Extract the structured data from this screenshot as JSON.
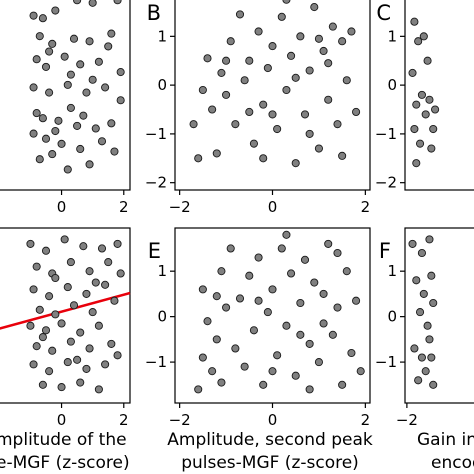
{
  "colors": {
    "point_fill": "#808080",
    "point_stroke": "#1a1a1a",
    "fit_line": "#e8000b",
    "axis": "#000000"
  },
  "axis_titles": {
    "col1": [
      "mplitude of the",
      "e-MGF (z-score)"
    ],
    "col2": [
      "Amplitude, second peak",
      "pulses-MGF (z-score)"
    ],
    "col3": [
      "Gain in",
      "encod"
    ]
  },
  "chart_data": [
    {
      "type": "scatter",
      "panel": "A",
      "letter": "",
      "grid": false,
      "xlim": [
        -2.3,
        2.2
      ],
      "ylim": [
        -2.1,
        1.8
      ],
      "xticks": [
        0,
        2
      ],
      "xtick_labels": [
        "0",
        "2"
      ],
      "yticks": [],
      "ytick_labels": [],
      "xlabel": "",
      "ylabel": "",
      "points": [
        [
          -0.9,
          1.3
        ],
        [
          -0.6,
          1.25
        ],
        [
          -0.2,
          1.4
        ],
        [
          0.5,
          1.6
        ],
        [
          1.0,
          1.55
        ],
        [
          1.8,
          1.6
        ],
        [
          -0.7,
          0.9
        ],
        [
          -0.3,
          0.75
        ],
        [
          0.4,
          0.85
        ],
        [
          0.9,
          0.8
        ],
        [
          1.5,
          0.7
        ],
        [
          -0.8,
          0.45
        ],
        [
          -0.5,
          0.3
        ],
        [
          0.1,
          0.5
        ],
        [
          0.6,
          0.35
        ],
        [
          1.2,
          0.4
        ],
        [
          1.9,
          0.2
        ],
        [
          -0.9,
          -0.1
        ],
        [
          -0.4,
          -0.2
        ],
        [
          0.2,
          -0.05
        ],
        [
          0.8,
          -0.2
        ],
        [
          1.4,
          -0.1
        ],
        [
          1.9,
          -0.35
        ],
        [
          -0.8,
          -0.6
        ],
        [
          -0.6,
          -0.7
        ],
        [
          -0.1,
          -0.75
        ],
        [
          0.3,
          -0.5
        ],
        [
          0.7,
          -0.65
        ],
        [
          1.1,
          -0.9
        ],
        [
          1.6,
          -0.8
        ],
        [
          -0.9,
          -1.0
        ],
        [
          -0.5,
          -1.1
        ],
        [
          0.0,
          -1.2
        ],
        [
          0.6,
          -1.3
        ],
        [
          1.3,
          -1.15
        ],
        [
          -0.7,
          -1.5
        ],
        [
          -0.3,
          -1.4
        ],
        [
          0.2,
          -1.7
        ],
        [
          0.9,
          -1.6
        ],
        [
          1.7,
          -1.35
        ],
        [
          -0.4,
          0.6
        ],
        [
          0.3,
          0.15
        ],
        [
          1.0,
          0.05
        ],
        [
          1.6,
          0.95
        ],
        [
          -0.2,
          -0.95
        ],
        [
          0.5,
          -0.85
        ]
      ]
    },
    {
      "type": "scatter",
      "panel": "B",
      "letter": "B",
      "grid": false,
      "xlim": [
        -2.1,
        2.1
      ],
      "ylim": [
        -2.15,
        1.95
      ],
      "xticks": [
        -2,
        0,
        2
      ],
      "xtick_labels": [
        "−2",
        "0",
        "2"
      ],
      "yticks": [
        -2,
        -1,
        0,
        1
      ],
      "ytick_labels": [
        "−2",
        "−1",
        "0",
        "1"
      ],
      "xlabel": "",
      "ylabel": "",
      "points": [
        [
          -1.6,
          -1.5
        ],
        [
          -1.2,
          -1.4
        ],
        [
          -1.7,
          -0.8
        ],
        [
          -1.3,
          -0.5
        ],
        [
          -1.5,
          -0.1
        ],
        [
          -1.1,
          0.25
        ],
        [
          -1.4,
          0.55
        ],
        [
          -0.9,
          0.9
        ],
        [
          -1.0,
          -0.2
        ],
        [
          -0.8,
          -0.8
        ],
        [
          -0.6,
          0.1
        ],
        [
          -0.5,
          0.5
        ],
        [
          -0.4,
          -1.2
        ],
        [
          -0.3,
          1.1
        ],
        [
          -0.2,
          -0.4
        ],
        [
          -0.1,
          0.35
        ],
        [
          0.0,
          0.8
        ],
        [
          0.1,
          -0.9
        ],
        [
          0.2,
          1.4
        ],
        [
          0.3,
          -0.1
        ],
        [
          0.4,
          0.6
        ],
        [
          0.5,
          -1.6
        ],
        [
          0.6,
          1.0
        ],
        [
          0.7,
          -0.6
        ],
        [
          0.8,
          0.3
        ],
        [
          0.9,
          1.6
        ],
        [
          1.0,
          -1.3
        ],
        [
          1.1,
          0.7
        ],
        [
          1.2,
          -0.3
        ],
        [
          1.3,
          1.2
        ],
        [
          1.4,
          -0.8
        ],
        [
          1.5,
          0.9
        ],
        [
          1.6,
          0.1
        ],
        [
          1.7,
          1.1
        ],
        [
          1.8,
          -0.55
        ],
        [
          -0.7,
          1.45
        ],
        [
          -0.2,
          -1.5
        ],
        [
          0.5,
          0.15
        ],
        [
          1.2,
          0.45
        ],
        [
          -1.0,
          0.5
        ],
        [
          0.0,
          -0.6
        ],
        [
          0.8,
          -1.0
        ],
        [
          1.5,
          -1.45
        ],
        [
          -0.5,
          -0.55
        ],
        [
          0.3,
          1.75
        ],
        [
          1.0,
          0.95
        ]
      ]
    },
    {
      "type": "scatter",
      "panel": "C",
      "letter": "C",
      "grid": false,
      "xlim": [
        -2.1,
        2.1
      ],
      "ylim": [
        -2.15,
        1.95
      ],
      "xticks": [],
      "xtick_labels": [],
      "yticks": [
        -2,
        -1,
        0,
        1
      ],
      "ytick_labels": [
        "−2",
        "−1",
        "0",
        "1"
      ],
      "xlabel": "",
      "ylabel": "",
      "points": [
        [
          -1.6,
          1.3
        ],
        [
          -1.4,
          0.9
        ],
        [
          -1.7,
          0.25
        ],
        [
          -1.5,
          -0.4
        ],
        [
          -1.2,
          -0.2
        ],
        [
          -1.0,
          -0.6
        ],
        [
          -0.8,
          -0.3
        ],
        [
          -0.6,
          -0.9
        ],
        [
          -1.3,
          -1.2
        ],
        [
          -1.5,
          -1.6
        ],
        [
          -0.9,
          0.5
        ],
        [
          -1.1,
          1.0
        ],
        [
          -0.7,
          -1.3
        ],
        [
          -1.6,
          -0.9
        ],
        [
          -0.5,
          -0.5
        ]
      ]
    },
    {
      "type": "scatter",
      "panel": "D",
      "letter": "",
      "grid": false,
      "xlim": [
        -2.3,
        2.2
      ],
      "ylim": [
        -1.9,
        1.95
      ],
      "xticks": [
        0,
        2
      ],
      "xtick_labels": [
        "0",
        "2"
      ],
      "yticks": [],
      "ytick_labels": [],
      "xlabel": "",
      "ylabel": "",
      "fit_line": [
        [
          -2.3,
          -0.32
        ],
        [
          2.2,
          0.52
        ]
      ],
      "points": [
        [
          -1.0,
          1.6
        ],
        [
          -0.5,
          1.45
        ],
        [
          0.1,
          1.7
        ],
        [
          0.7,
          1.55
        ],
        [
          1.3,
          1.5
        ],
        [
          1.8,
          1.6
        ],
        [
          -0.8,
          1.1
        ],
        [
          -0.3,
          0.95
        ],
        [
          0.3,
          1.2
        ],
        [
          0.9,
          1.0
        ],
        [
          1.5,
          1.2
        ],
        [
          1.9,
          0.95
        ],
        [
          -0.9,
          0.6
        ],
        [
          -0.4,
          0.45
        ],
        [
          0.2,
          0.65
        ],
        [
          0.8,
          0.5
        ],
        [
          1.4,
          0.7
        ],
        [
          -0.7,
          0.15
        ],
        [
          -0.2,
          0.05
        ],
        [
          0.4,
          0.25
        ],
        [
          1.0,
          0.1
        ],
        [
          1.7,
          0.35
        ],
        [
          -1.0,
          -0.2
        ],
        [
          -0.5,
          -0.3
        ],
        [
          0.0,
          -0.15
        ],
        [
          0.6,
          -0.35
        ],
        [
          1.2,
          -0.2
        ],
        [
          -0.8,
          -0.65
        ],
        [
          -0.3,
          -0.75
        ],
        [
          0.3,
          -0.55
        ],
        [
          0.9,
          -0.7
        ],
        [
          1.6,
          -0.6
        ],
        [
          -0.9,
          -1.05
        ],
        [
          -0.4,
          -1.2
        ],
        [
          0.2,
          -1.0
        ],
        [
          0.8,
          -1.15
        ],
        [
          1.4,
          -1.05
        ],
        [
          -0.6,
          -1.5
        ],
        [
          0.0,
          -1.55
        ],
        [
          0.6,
          -1.45
        ],
        [
          1.2,
          -1.6
        ],
        [
          -0.2,
          0.85
        ],
        [
          0.5,
          -0.95
        ],
        [
          1.1,
          0.75
        ],
        [
          -0.6,
          -0.45
        ],
        [
          1.8,
          -0.85
        ]
      ]
    },
    {
      "type": "scatter",
      "panel": "E",
      "letter": "E",
      "grid": false,
      "xlim": [
        -2.1,
        2.1
      ],
      "ylim": [
        -1.9,
        1.95
      ],
      "xticks": [
        -2,
        0,
        2
      ],
      "xtick_labels": [
        "−2",
        "0",
        "2"
      ],
      "yticks": [
        -1,
        0,
        1
      ],
      "ytick_labels": [
        "−1",
        "0",
        "1"
      ],
      "xlabel": "",
      "ylabel": "",
      "points": [
        [
          -1.6,
          -1.6
        ],
        [
          -1.3,
          -1.2
        ],
        [
          -1.1,
          -1.45
        ],
        [
          -1.5,
          -0.9
        ],
        [
          -1.2,
          -0.5
        ],
        [
          -1.4,
          -0.1
        ],
        [
          -1.0,
          0.2
        ],
        [
          -1.5,
          0.6
        ],
        [
          -1.1,
          1.0
        ],
        [
          -0.8,
          -0.7
        ],
        [
          -0.6,
          -1.1
        ],
        [
          -0.7,
          0.4
        ],
        [
          -0.5,
          0.9
        ],
        [
          -0.4,
          -0.3
        ],
        [
          -0.3,
          1.3
        ],
        [
          -0.2,
          -1.5
        ],
        [
          -0.1,
          0.1
        ],
        [
          0.0,
          0.6
        ],
        [
          0.1,
          -0.85
        ],
        [
          0.2,
          1.5
        ],
        [
          0.3,
          -0.2
        ],
        [
          0.4,
          0.95
        ],
        [
          0.5,
          -1.3
        ],
        [
          0.6,
          0.3
        ],
        [
          0.7,
          1.25
        ],
        [
          0.8,
          -0.6
        ],
        [
          0.9,
          0.75
        ],
        [
          1.0,
          -1.0
        ],
        [
          1.1,
          0.5
        ],
        [
          1.2,
          1.6
        ],
        [
          1.3,
          -0.4
        ],
        [
          1.4,
          0.2
        ],
        [
          1.5,
          -1.5
        ],
        [
          1.6,
          1.0
        ],
        [
          1.7,
          -0.8
        ],
        [
          1.8,
          0.35
        ],
        [
          -0.9,
          1.5
        ],
        [
          0.3,
          1.8
        ],
        [
          0.8,
          -1.6
        ],
        [
          1.1,
          -0.15
        ],
        [
          -0.3,
          0.35
        ],
        [
          0.6,
          -0.4
        ],
        [
          1.9,
          -1.2
        ],
        [
          -1.2,
          0.45
        ],
        [
          0.0,
          -1.2
        ],
        [
          1.4,
          1.4
        ]
      ]
    },
    {
      "type": "scatter",
      "panel": "F",
      "letter": "F",
      "grid": false,
      "xlim": [
        -2.1,
        2.1
      ],
      "ylim": [
        -1.9,
        1.95
      ],
      "xticks": [
        -2
      ],
      "xtick_labels": [
        "−2"
      ],
      "yticks": [
        -1,
        0,
        1
      ],
      "ytick_labels": [
        "−1",
        "0",
        "1"
      ],
      "xlabel": "",
      "ylabel": "",
      "points": [
        [
          -1.7,
          1.6
        ],
        [
          -1.2,
          1.4
        ],
        [
          -0.8,
          1.7
        ],
        [
          -1.5,
          0.8
        ],
        [
          -1.1,
          0.5
        ],
        [
          -0.7,
          0.9
        ],
        [
          -1.3,
          0.1
        ],
        [
          -0.9,
          -0.2
        ],
        [
          -0.6,
          0.3
        ],
        [
          -1.6,
          -0.7
        ],
        [
          -1.2,
          -0.9
        ],
        [
          -0.8,
          -0.5
        ],
        [
          -1.4,
          -1.4
        ],
        [
          -1.0,
          -1.2
        ],
        [
          -0.6,
          -1.5
        ],
        [
          -0.7,
          -0.9
        ]
      ]
    }
  ]
}
